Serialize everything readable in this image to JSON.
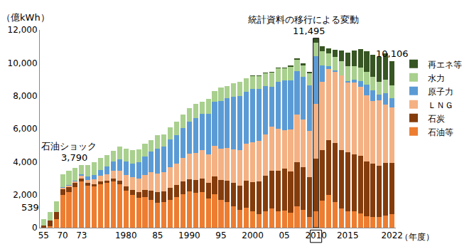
{
  "chart_data": {
    "type": "bar",
    "stacked": true,
    "y_label": "（億kWh）",
    "x_label": "（年度）",
    "categories": [
      "55",
      null,
      null,
      "70",
      null,
      null,
      "73",
      null,
      null,
      null,
      null,
      null,
      null,
      "1980",
      null,
      null,
      null,
      null,
      "85",
      null,
      null,
      null,
      null,
      "1990",
      null,
      null,
      null,
      null,
      "95",
      null,
      null,
      null,
      null,
      "2000",
      null,
      null,
      null,
      null,
      "05",
      null,
      null,
      null,
      null,
      "2010",
      null,
      null,
      null,
      null,
      "2015",
      null,
      null,
      null,
      null,
      null,
      null,
      "2022"
    ],
    "series": [
      {
        "name": "石油等",
        "color": "#ed7d31",
        "values": [
          10,
          100,
          500,
          2000,
          2150,
          2450,
          2800,
          2550,
          2500,
          2650,
          2700,
          2800,
          2650,
          2250,
          2000,
          1800,
          1850,
          1700,
          1500,
          1550,
          1700,
          1850,
          2050,
          2200,
          2100,
          2150,
          1750,
          2050,
          1700,
          1550,
          1300,
          1100,
          1200,
          1000,
          800,
          1000,
          1150,
          1000,
          1050,
          900,
          1300,
          1100,
          650,
          980,
          1660,
          1970,
          1570,
          1160,
          1010,
          1000,
          880,
          700,
          640,
          640,
          750,
          830
        ]
      },
      {
        "name": "石炭",
        "color": "#843c0c",
        "values": [
          110,
          350,
          450,
          350,
          300,
          250,
          180,
          150,
          150,
          150,
          150,
          170,
          200,
          250,
          300,
          380,
          450,
          550,
          650,
          650,
          700,
          750,
          750,
          750,
          800,
          850,
          950,
          1050,
          1200,
          1300,
          1400,
          1450,
          1650,
          1750,
          2000,
          2150,
          2300,
          2450,
          2550,
          2500,
          2650,
          2550,
          2400,
          3200,
          3060,
          3340,
          3570,
          3540,
          3560,
          3450,
          3470,
          3320,
          3230,
          3100,
          3160,
          3110
        ]
      },
      {
        "name": "ＬＮＧ",
        "color": "#f4b183",
        "values": [
          0,
          0,
          0,
          60,
          80,
          100,
          150,
          200,
          300,
          350,
          400,
          500,
          600,
          700,
          750,
          800,
          900,
          1100,
          1150,
          1150,
          1250,
          1300,
          1450,
          1550,
          1650,
          1700,
          1750,
          1850,
          1900,
          2000,
          2050,
          2150,
          2250,
          2450,
          2450,
          2500,
          2700,
          2550,
          2300,
          2550,
          2900,
          2900,
          2800,
          3340,
          4110,
          4320,
          4330,
          4550,
          4250,
          4350,
          4200,
          4020,
          3820,
          3980,
          3560,
          3360
        ]
      },
      {
        "name": "原子力",
        "color": "#5b9bd5",
        "values": [
          0,
          0,
          0,
          40,
          60,
          70,
          100,
          200,
          250,
          350,
          450,
          550,
          700,
          800,
          850,
          1000,
          1100,
          1250,
          1500,
          1550,
          1700,
          1700,
          1800,
          1950,
          2100,
          2200,
          2450,
          2700,
          2900,
          3000,
          3200,
          3300,
          3150,
          3200,
          3150,
          2950,
          2400,
          2850,
          3050,
          3000,
          2650,
          2600,
          2800,
          2880,
          1020,
          160,
          90,
          0,
          90,
          180,
          330,
          620,
          640,
          370,
          710,
          560
        ]
      },
      {
        "name": "水力",
        "color": "#a9d08e",
        "values": [
          419,
          500,
          650,
          800,
          850,
          750,
          560,
          700,
          750,
          750,
          700,
          650,
          750,
          800,
          800,
          780,
          800,
          700,
          800,
          750,
          750,
          850,
          800,
          800,
          850,
          750,
          900,
          650,
          800,
          750,
          800,
          850,
          800,
          800,
          800,
          750,
          850,
          800,
          700,
          800,
          700,
          700,
          700,
          840,
          850,
          770,
          790,
          840,
          870,
          800,
          840,
          810,
          800,
          780,
          780,
          770
        ]
      },
      {
        "name": "再エネ等",
        "color": "#375623",
        "values": [
          0,
          0,
          0,
          0,
          0,
          0,
          0,
          0,
          0,
          0,
          0,
          0,
          0,
          0,
          0,
          0,
          0,
          0,
          0,
          0,
          0,
          0,
          0,
          0,
          0,
          0,
          0,
          0,
          0,
          0,
          0,
          0,
          0,
          20,
          30,
          50,
          50,
          60,
          70,
          80,
          90,
          100,
          100,
          255,
          290,
          330,
          450,
          650,
          830,
          950,
          1110,
          1250,
          1380,
          1500,
          1600,
          1476
        ]
      }
    ],
    "ylim": [
      0,
      12000
    ],
    "yticks": [
      0,
      {
        "value": 2000,
        "label": "2,000"
      },
      {
        "value": 4000,
        "label": "4,000"
      },
      {
        "value": 6000,
        "label": "6,000"
      },
      {
        "value": 8000,
        "label": "8,000"
      },
      {
        "value": 10000,
        "label": "10,000"
      },
      {
        "value": 12000,
        "label": "12,000"
      }
    ],
    "grid": false,
    "legend": "right",
    "annotations": [
      {
        "text": "539",
        "category": "55",
        "value": 539
      },
      {
        "text": "石油ショック",
        "category": "73"
      },
      {
        "text": "3,790",
        "category": "73",
        "value": 3790
      },
      {
        "text": "統計資料の移行による変動",
        "category": "2010"
      },
      {
        "text": "11,495",
        "category": "2010",
        "value": 11495
      },
      {
        "text": "10,106",
        "category": "2022",
        "value": 10106
      }
    ]
  }
}
